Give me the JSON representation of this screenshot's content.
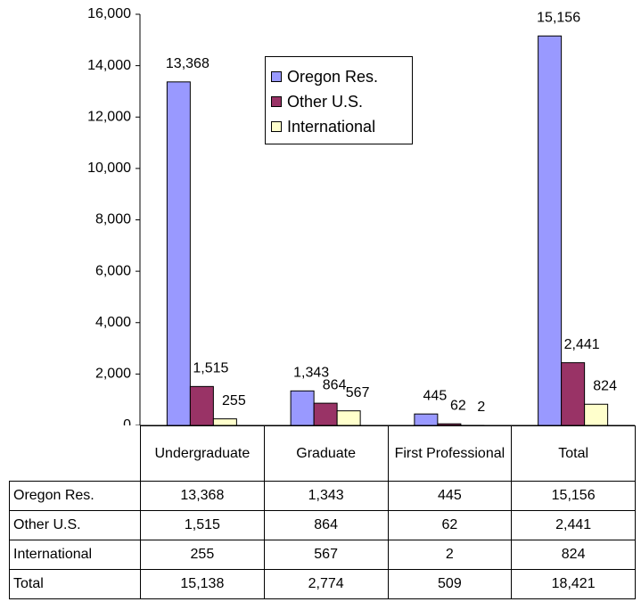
{
  "chart_data": {
    "type": "bar",
    "categories": [
      "Undergraduate",
      "Graduate",
      "First Professional",
      "Total"
    ],
    "series": [
      {
        "name": "Oregon Res.",
        "color": "#9999ff",
        "values": [
          13368,
          1343,
          445,
          15156
        ],
        "value_labels": [
          "13,368",
          "1,343",
          "445",
          "15,156"
        ]
      },
      {
        "name": "Other U.S.",
        "color": "#993366",
        "values": [
          1515,
          864,
          62,
          2441
        ],
        "value_labels": [
          "1,515",
          "864",
          "62",
          "2,441"
        ]
      },
      {
        "name": "International",
        "color": "#ffffcc",
        "values": [
          255,
          567,
          2,
          824
        ],
        "value_labels": [
          "255",
          "567",
          "2",
          "824"
        ]
      }
    ],
    "ylim": [
      0,
      16000
    ],
    "yticks": [
      0,
      {
        "value": 2000,
        "label": "2,000"
      },
      {
        "value": 4000,
        "label": "4,000"
      },
      {
        "value": 6000,
        "label": "6,000"
      },
      {
        "value": 8000,
        "label": "8,000"
      },
      {
        "value": 10000,
        "label": "10,000"
      },
      {
        "value": 12000,
        "label": "12,000"
      },
      {
        "value": 14000,
        "label": "14,000"
      },
      {
        "value": 16000,
        "label": "16,000"
      }
    ],
    "grid": false,
    "legend": "top",
    "table_total": {
      "label": "Total",
      "values": [
        15138,
        2774,
        509,
        18421
      ],
      "value_labels": [
        "15,138",
        "2,774",
        "509",
        "18,421"
      ]
    }
  }
}
